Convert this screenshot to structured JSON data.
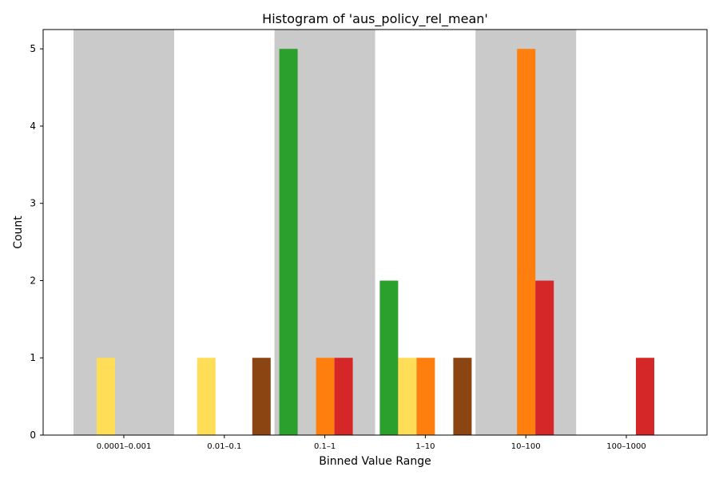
{
  "chart_data": {
    "type": "bar",
    "title": "Histogram of 'aus_policy_rel_mean'",
    "xlabel": "Binned Value Range",
    "ylabel": "Count",
    "categories": [
      "0.0001–0.001",
      "0.01–0.1",
      "0.1–1",
      "1–10",
      "10–100",
      "100–1000"
    ],
    "ylim": [
      0,
      5.25
    ],
    "yticks": [
      0,
      1,
      2,
      3,
      4,
      5
    ],
    "grid": false,
    "legend": "none",
    "shaded_categories": [
      0,
      2,
      4
    ],
    "shade_color": "#cacaca",
    "series": [
      {
        "color": "#2ca02c",
        "values": [
          0,
          0,
          5,
          2,
          0,
          0
        ]
      },
      {
        "color": "#ffdd57",
        "values": [
          1,
          1,
          0,
          1,
          0,
          0
        ]
      },
      {
        "color": "#ff7f0e",
        "values": [
          0,
          0,
          1,
          1,
          5,
          0
        ]
      },
      {
        "color": "#d62728",
        "values": [
          0,
          0,
          1,
          0,
          2,
          1
        ]
      },
      {
        "color": "#8b4513",
        "values": [
          0,
          1,
          0,
          1,
          0,
          0
        ]
      }
    ]
  }
}
